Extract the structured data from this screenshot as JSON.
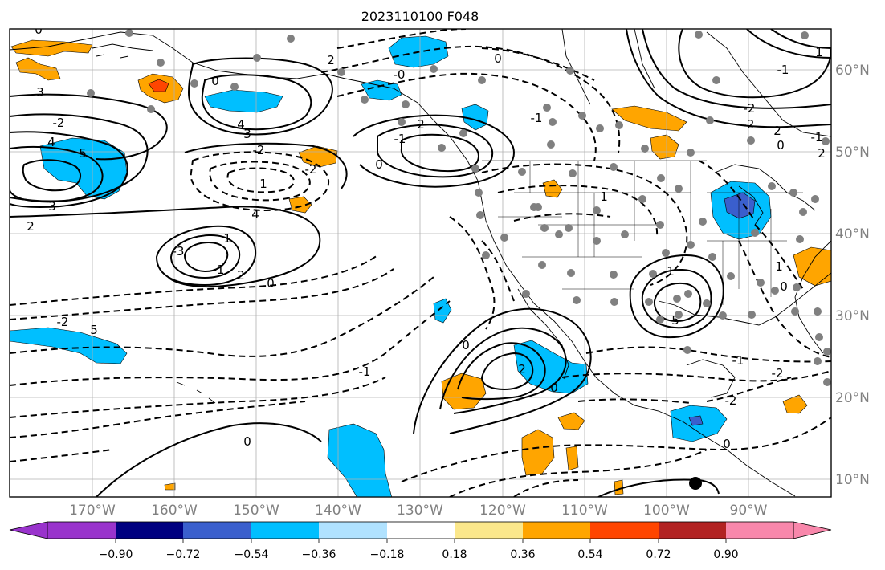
{
  "title": "2023110100 F048",
  "map": {
    "lon_labels": [
      "170°W",
      "160°W",
      "150°W",
      "140°W",
      "130°W",
      "120°W",
      "110°W",
      "100°W",
      "90°W"
    ],
    "lat_labels": [
      "60°N",
      "50°N",
      "40°N",
      "30°N",
      "20°N",
      "10°N"
    ],
    "label_color": "#808080",
    "grid_color": "#b0b0b0"
  },
  "contour_labels": [
    "0",
    "-2",
    "5",
    "4",
    "3",
    "2",
    "1",
    "-1",
    "-3",
    "2",
    "0",
    "-2",
    "5",
    "4",
    "3",
    "-2",
    "-2",
    "1",
    "0",
    "4",
    "3",
    "2",
    "0",
    "-0",
    "-1",
    "0",
    "2",
    "-1",
    "1",
    "-2",
    "2",
    "-1",
    "-2",
    "0",
    "2",
    "1",
    "-1",
    "0",
    "1"
  ],
  "colorbar": {
    "colors": [
      "#9933cc",
      "#000080",
      "#3a5fcd",
      "#00bfff",
      "#b0e2ff",
      "#ffffff",
      "#fbe78b",
      "#ffa500",
      "#ff4500",
      "#b22222",
      "#f887ab"
    ],
    "ticks": [
      "−0.90",
      "−0.72",
      "−0.54",
      "−0.36",
      "−0.18",
      "0.18",
      "0.36",
      "0.54",
      "0.72",
      "0.90"
    ]
  },
  "marker_color": "#000000",
  "station_color": "#808080"
}
